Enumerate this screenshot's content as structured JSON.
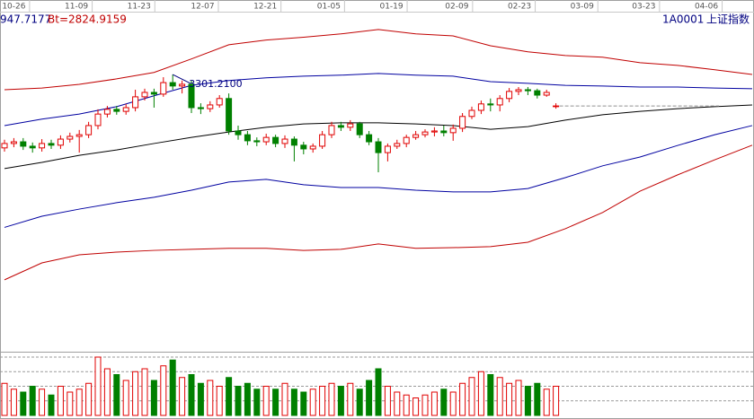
{
  "chart_data": {
    "type": "candlestick",
    "header": {
      "left": "947.7177",
      "band": "Bt=2824.9159",
      "code": "1A0001",
      "name": "上证指数"
    },
    "annotation": "3301.2100",
    "xlim": [
      0,
      80
    ],
    "xticks": [
      {
        "value": 1.0,
        "label": "10-26"
      },
      {
        "value": 7.7,
        "label": "11-09"
      },
      {
        "value": 14.4,
        "label": "11-23"
      },
      {
        "value": 21.2,
        "label": "12-07"
      },
      {
        "value": 27.9,
        "label": "12-21"
      },
      {
        "value": 34.7,
        "label": "01-05"
      },
      {
        "value": 41.4,
        "label": "01-19"
      },
      {
        "value": 48.4,
        "label": "02-09"
      },
      {
        "value": 55.1,
        "label": "02-23"
      },
      {
        "value": 61.8,
        "label": "03-09"
      },
      {
        "value": 68.4,
        "label": "03-23"
      },
      {
        "value": 75.1,
        "label": "04-06"
      }
    ],
    "ylim": [
      2500,
      3500
    ],
    "up_color": "#e00000",
    "down_color": "#008000",
    "open": [
      3084,
      3097,
      3102,
      3089,
      3084,
      3097,
      3092,
      3110,
      3118,
      3123,
      3150,
      3184,
      3198,
      3192,
      3203,
      3235,
      3248,
      3243,
      3277,
      3267,
      3272,
      3203,
      3200,
      3211,
      3230,
      3134,
      3123,
      3105,
      3102,
      3115,
      3097,
      3110,
      3092,
      3081,
      3089,
      3123,
      3150,
      3145,
      3155,
      3123,
      3102,
      3070,
      3089,
      3097,
      3115,
      3123,
      3131,
      3134,
      3129,
      3142,
      3177,
      3195,
      3214,
      3211,
      3230,
      3251,
      3256,
      3253,
      3240,
      3208
    ],
    "high": [
      3108,
      3113,
      3113,
      3100,
      3110,
      3108,
      3121,
      3129,
      3137,
      3161,
      3198,
      3208,
      3208,
      3214,
      3256,
      3259,
      3259,
      3293,
      3301,
      3283,
      3283,
      3216,
      3222,
      3240,
      3245,
      3150,
      3134,
      3115,
      3126,
      3123,
      3121,
      3118,
      3102,
      3097,
      3134,
      3161,
      3161,
      3166,
      3161,
      3134,
      3113,
      3097,
      3108,
      3123,
      3134,
      3139,
      3145,
      3150,
      3153,
      3187,
      3206,
      3224,
      3230,
      3240,
      3261,
      3264,
      3264,
      3259,
      3256,
      3216
    ],
    "low": [
      3073,
      3086,
      3078,
      3070,
      3073,
      3081,
      3081,
      3100,
      3070,
      3113,
      3139,
      3174,
      3182,
      3182,
      3192,
      3224,
      3203,
      3235,
      3256,
      3245,
      3187,
      3184,
      3190,
      3203,
      3123,
      3108,
      3092,
      3089,
      3092,
      3086,
      3084,
      3044,
      3065,
      3070,
      3081,
      3113,
      3134,
      3134,
      3113,
      3092,
      3012,
      3044,
      3081,
      3086,
      3108,
      3115,
      3118,
      3118,
      3105,
      3131,
      3169,
      3184,
      3192,
      3192,
      3219,
      3240,
      3240,
      3230,
      3235,
      3200
    ],
    "close": [
      3097,
      3102,
      3089,
      3084,
      3097,
      3092,
      3110,
      3118,
      3123,
      3150,
      3184,
      3198,
      3192,
      3203,
      3235,
      3248,
      3243,
      3277,
      3267,
      3272,
      3203,
      3200,
      3211,
      3230,
      3134,
      3123,
      3105,
      3102,
      3115,
      3097,
      3110,
      3092,
      3081,
      3089,
      3123,
      3150,
      3145,
      3155,
      3123,
      3102,
      3070,
      3089,
      3097,
      3115,
      3123,
      3131,
      3134,
      3129,
      3142,
      3177,
      3195,
      3214,
      3211,
      3230,
      3251,
      3256,
      3253,
      3240,
      3248,
      3208
    ],
    "bands": {
      "x": [
        0,
        4,
        8,
        12,
        16,
        20,
        24,
        28,
        32,
        36,
        40,
        44,
        48,
        52,
        56,
        60,
        64,
        68,
        72,
        76,
        80
      ],
      "series": [
        {
          "color": "#c00000",
          "values": [
            3256,
            3261,
            3272,
            3288,
            3307,
            3347,
            3389,
            3403,
            3411,
            3421,
            3434,
            3421,
            3415,
            3386,
            3368,
            3357,
            3352,
            3336,
            3328,
            3315,
            3301
          ]
        },
        {
          "color": "#0000a0",
          "values": [
            3150,
            3169,
            3184,
            3206,
            3238,
            3269,
            3283,
            3291,
            3296,
            3299,
            3304,
            3299,
            3296,
            3280,
            3275,
            3269,
            3267,
            3264,
            3264,
            3261,
            3259
          ]
        },
        {
          "color": "#000000",
          "values": [
            3023,
            3041,
            3062,
            3078,
            3097,
            3115,
            3131,
            3145,
            3155,
            3158,
            3158,
            3155,
            3150,
            3139,
            3147,
            3166,
            3182,
            3192,
            3200,
            3206,
            3211
          ]
        },
        {
          "color": "#0000a0",
          "values": [
            2849,
            2882,
            2903,
            2922,
            2938,
            2959,
            2983,
            2991,
            2975,
            2967,
            2967,
            2959,
            2954,
            2954,
            2964,
            2996,
            3031,
            3057,
            3091,
            3123,
            3150
          ]
        },
        {
          "color": "#c00000",
          "values": [
            2694,
            2744,
            2768,
            2776,
            2781,
            2784,
            2787,
            2787,
            2781,
            2784,
            2800,
            2787,
            2789,
            2792,
            2805,
            2845,
            2893,
            2956,
            3004,
            3049,
            3092
          ]
        }
      ]
    },
    "volume": {
      "ylim": [
        0,
        100
      ],
      "yticks": [
        25,
        50,
        75,
        100
      ],
      "values": [
        55,
        45,
        40,
        50,
        45,
        35,
        50,
        40,
        45,
        55,
        100,
        80,
        70,
        60,
        75,
        80,
        60,
        85,
        95,
        65,
        70,
        55,
        60,
        50,
        65,
        50,
        55,
        45,
        50,
        45,
        55,
        45,
        40,
        45,
        50,
        55,
        50,
        55,
        45,
        60,
        80,
        50,
        40,
        35,
        30,
        35,
        40,
        45,
        40,
        55,
        65,
        75,
        70,
        65,
        55,
        60,
        50,
        55,
        45,
        50
      ]
    }
  }
}
